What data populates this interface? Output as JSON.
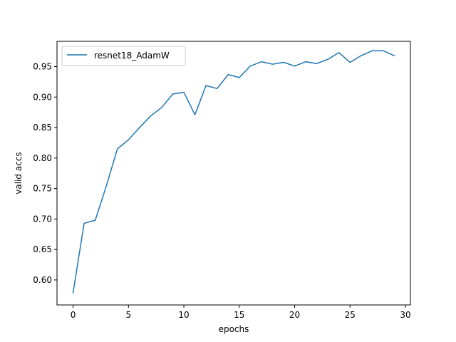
{
  "chart_data": {
    "type": "line",
    "title": "",
    "xlabel": "epochs",
    "ylabel": "valid accs",
    "xlim": [
      -1.45,
      30.45
    ],
    "ylim": [
      0.559,
      0.9915
    ],
    "xticks": [
      0,
      5,
      10,
      15,
      20,
      25,
      30
    ],
    "yticks": [
      0.6,
      0.65,
      0.7,
      0.75,
      0.8,
      0.85,
      0.9,
      0.95
    ],
    "xtick_labels": [
      "0",
      "5",
      "10",
      "15",
      "20",
      "25",
      "30"
    ],
    "ytick_labels": [
      "0.60",
      "0.65",
      "0.70",
      "0.75",
      "0.80",
      "0.85",
      "0.90",
      "0.95"
    ],
    "grid": false,
    "legend_position": "upper-left",
    "series": [
      {
        "name": "resnet18_AdamW",
        "color": "#1f77b4",
        "x": [
          0,
          1,
          2,
          3,
          4,
          5,
          6,
          7,
          8,
          9,
          10,
          11,
          12,
          13,
          14,
          15,
          16,
          17,
          18,
          19,
          20,
          21,
          22,
          23,
          24,
          25,
          26,
          27,
          28,
          29
        ],
        "values": [
          0.579,
          0.693,
          0.698,
          0.754,
          0.815,
          0.83,
          0.85,
          0.869,
          0.883,
          0.905,
          0.908,
          0.871,
          0.919,
          0.914,
          0.937,
          0.932,
          0.951,
          0.958,
          0.954,
          0.957,
          0.951,
          0.958,
          0.955,
          0.962,
          0.973,
          0.957,
          0.968,
          0.976,
          0.976,
          0.968
        ]
      }
    ]
  }
}
